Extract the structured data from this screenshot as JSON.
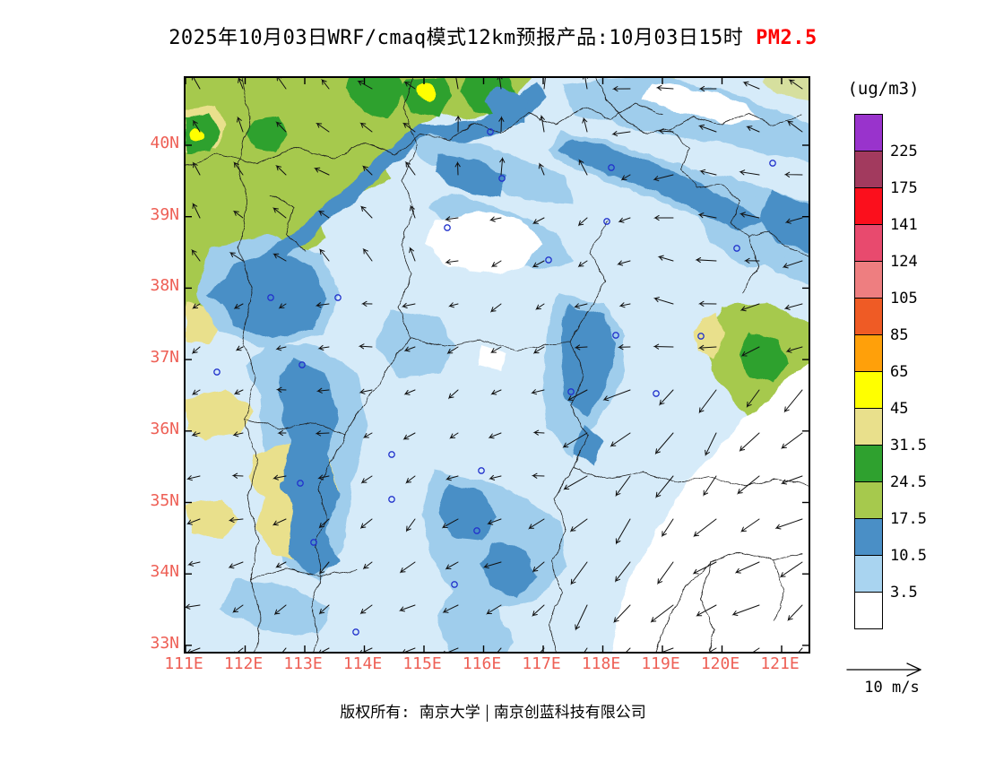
{
  "title": {
    "prefix": "2025年10月03日WRF/cmaq模式12km预报产品:10月03日15时",
    "pollutant": "PM2.5"
  },
  "legend": {
    "unit": "(ug/m3)",
    "box_colors_top_to_bottom": [
      "#9933cc",
      "#a23a5e",
      "#fb0f1c",
      "#e84a6e",
      "#ee7e80",
      "#ef5b25",
      "#ffa00a",
      "#ffff00",
      "#e9e08c",
      "#2fa12f",
      "#a6c94d",
      "#4a8fc6",
      "#a9d4f0",
      "#ffffff"
    ],
    "boundary_labels_top_to_bottom": [
      "225",
      "175",
      "141",
      "124",
      "105",
      "85",
      "65",
      "45",
      "31.5",
      "24.5",
      "17.5",
      "10.5",
      "3.5"
    ]
  },
  "axes": {
    "lat_labels": [
      "40N",
      "39N",
      "38N",
      "37N",
      "36N",
      "35N",
      "34N",
      "33N"
    ],
    "lon_labels": [
      "111E",
      "112E",
      "113E",
      "114E",
      "115E",
      "116E",
      "117E",
      "118E",
      "119E",
      "120E",
      "121E"
    ],
    "label_color": "#ee5f55"
  },
  "wind_legend": {
    "label": "10 m/s"
  },
  "footer": {
    "left": "版权所有: 南京大学",
    "right": "南京创蓝科技有限公司"
  },
  "colors": {
    "title_text": "#000000",
    "pollutant_highlight": "#fe0000",
    "map_marker": "#2233cc",
    "vector_stroke": "#111111"
  }
}
